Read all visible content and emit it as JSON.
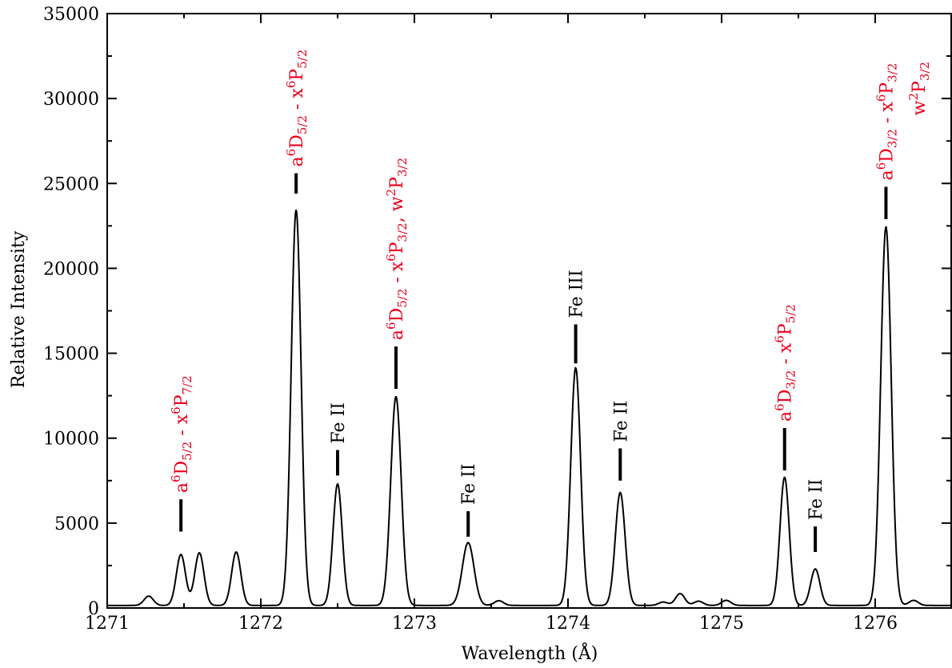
{
  "chart_data": {
    "type": "line",
    "title": "",
    "xlabel": "Wavelength (Å)",
    "ylabel": "Relative Intensity",
    "xlim": [
      1271,
      1276.5
    ],
    "ylim": [
      0,
      35000
    ],
    "grid": false,
    "legend": "none",
    "x_ticks": [
      1271,
      1272,
      1273,
      1274,
      1275,
      1276
    ],
    "y_ticks": [
      0,
      5000,
      10000,
      15000,
      20000,
      25000,
      30000,
      35000
    ],
    "line_color": "#000000",
    "annotation_colors": {
      "multiplet": "#e8001c",
      "line_id": "#000000"
    },
    "baseline": 150,
    "peaks": [
      {
        "x": 1271.27,
        "height": 550,
        "sigma": 0.03
      },
      {
        "x": 1271.48,
        "height": 3000,
        "sigma": 0.03
      },
      {
        "x": 1271.6,
        "height": 3100,
        "sigma": 0.03
      },
      {
        "x": 1271.84,
        "height": 3150,
        "sigma": 0.03
      },
      {
        "x": 1272.23,
        "height": 23300,
        "sigma": 0.032
      },
      {
        "x": 1272.5,
        "height": 7150,
        "sigma": 0.03
      },
      {
        "x": 1272.88,
        "height": 12300,
        "sigma": 0.034
      },
      {
        "x": 1273.35,
        "height": 3700,
        "sigma": 0.038
      },
      {
        "x": 1273.55,
        "height": 280,
        "sigma": 0.03
      },
      {
        "x": 1274.05,
        "height": 14000,
        "sigma": 0.032
      },
      {
        "x": 1274.34,
        "height": 6650,
        "sigma": 0.032
      },
      {
        "x": 1274.62,
        "height": 200,
        "sigma": 0.03
      },
      {
        "x": 1274.73,
        "height": 700,
        "sigma": 0.03
      },
      {
        "x": 1274.85,
        "height": 250,
        "sigma": 0.03
      },
      {
        "x": 1275.03,
        "height": 300,
        "sigma": 0.03
      },
      {
        "x": 1275.41,
        "height": 7550,
        "sigma": 0.03
      },
      {
        "x": 1275.61,
        "height": 2150,
        "sigma": 0.03
      },
      {
        "x": 1276.07,
        "height": 22300,
        "sigma": 0.034
      },
      {
        "x": 1276.25,
        "height": 300,
        "sigma": 0.03
      }
    ],
    "annotations": [
      {
        "x": 1271.48,
        "tick_from": 4500,
        "tick_to": 6400,
        "kind": "multiplet",
        "parts": [
          "a",
          "6",
          "D",
          "5/2",
          " - x",
          "6",
          "P",
          "7/2"
        ]
      },
      {
        "x": 1272.23,
        "tick_from": 24400,
        "tick_to": 25600,
        "kind": "multiplet",
        "parts": [
          "a",
          "6",
          "D",
          "5/2",
          " - x",
          "6",
          "P",
          "5/2"
        ]
      },
      {
        "x": 1272.5,
        "tick_from": 7800,
        "tick_to": 9300,
        "kind": "line_id",
        "text": "Fe II"
      },
      {
        "x": 1272.88,
        "tick_from": 12900,
        "tick_to": 15400,
        "kind": "multiplet",
        "parts": [
          "a",
          "6",
          "D",
          "5/2",
          " - x",
          "6",
          "P",
          "3/2",
          ",  w",
          "2",
          "P",
          "3/2"
        ]
      },
      {
        "x": 1273.35,
        "tick_from": 4200,
        "tick_to": 5700,
        "kind": "line_id",
        "text": "Fe II"
      },
      {
        "x": 1274.05,
        "tick_from": 14400,
        "tick_to": 16700,
        "kind": "line_id",
        "text": "Fe III"
      },
      {
        "x": 1274.34,
        "tick_from": 7500,
        "tick_to": 9400,
        "kind": "line_id",
        "text": "Fe II"
      },
      {
        "x": 1275.41,
        "tick_from": 8100,
        "tick_to": 10600,
        "kind": "multiplet",
        "parts": [
          "a",
          "6",
          "D",
          "3/2",
          " - x",
          "6",
          "P",
          "5/2"
        ]
      },
      {
        "x": 1275.61,
        "tick_from": 3300,
        "tick_to": 4800,
        "kind": "line_id",
        "text": "Fe II"
      },
      {
        "x": 1276.07,
        "tick_from": 22900,
        "tick_to": 24800,
        "kind": "multiplet",
        "parts": [
          "a",
          "6",
          "D",
          "3/2",
          " - x",
          "6",
          "P",
          "3/2"
        ]
      }
    ],
    "extra_labels": [
      {
        "x": 1276.28,
        "y": 29000,
        "kind": "multiplet",
        "parts": [
          "w",
          "2",
          "P",
          "3/2"
        ]
      }
    ]
  }
}
